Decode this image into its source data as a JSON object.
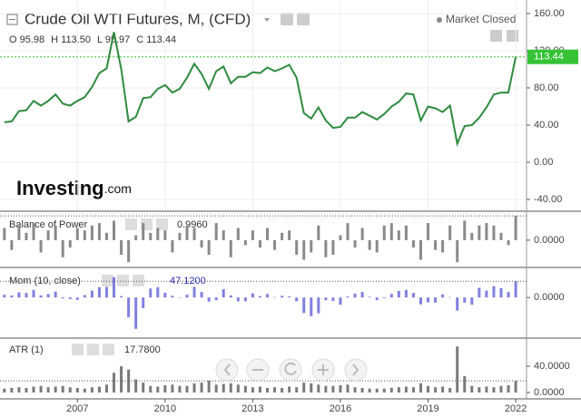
{
  "chart_data": [
    {
      "type": "line",
      "title": "Crude Oil WTI Futures, M, (CFD)",
      "status": "Market Closed",
      "ohlc": [
        "O 95.98",
        "H 113.50",
        "L 95.97",
        "C 113.44"
      ],
      "brand": "Investing",
      "brand_suffix": ".com",
      "color": "#2e8b3e",
      "last_color": "#35c335",
      "grid": true,
      "x": [
        2004.5,
        2004.75,
        2005,
        2005.25,
        2005.5,
        2005.75,
        2006,
        2006.25,
        2006.5,
        2006.75,
        2007,
        2007.25,
        2007.5,
        2007.75,
        2008,
        2008.25,
        2008.5,
        2008.75,
        2009,
        2009.25,
        2009.5,
        2009.75,
        2010,
        2010.25,
        2010.5,
        2010.75,
        2011,
        2011.25,
        2011.5,
        2011.75,
        2012,
        2012.25,
        2012.5,
        2012.75,
        2013,
        2013.25,
        2013.5,
        2013.75,
        2014,
        2014.25,
        2014.5,
        2014.75,
        2015,
        2015.25,
        2015.5,
        2015.75,
        2016,
        2016.25,
        2016.5,
        2016.75,
        2017,
        2017.25,
        2017.5,
        2017.75,
        2018,
        2018.25,
        2018.5,
        2018.75,
        2019,
        2019.25,
        2019.5,
        2019.75,
        2020,
        2020.25,
        2020.5,
        2020.75,
        2021,
        2021.25,
        2021.5,
        2021.75,
        2022
      ],
      "values": [
        43,
        44,
        55,
        56,
        66,
        61,
        66,
        73,
        63,
        61,
        66,
        70,
        81,
        96,
        101,
        140,
        100,
        44,
        49,
        69,
        70,
        79,
        83,
        75,
        79,
        91,
        106,
        95,
        79,
        98,
        103,
        85,
        92,
        92,
        97,
        96,
        102,
        98,
        101,
        105,
        91,
        53,
        47,
        59,
        45,
        37,
        38,
        48,
        48,
        54,
        50,
        46,
        52,
        60,
        65,
        74,
        73,
        45,
        60,
        58,
        54,
        61,
        20,
        39,
        40,
        48,
        59,
        73,
        75,
        75,
        113.44
      ],
      "xlim": [
        2004.35,
        2022.37
      ],
      "xticks": [
        2007,
        2010,
        2013,
        2016,
        2019,
        2022
      ],
      "ylim": [
        -51.7,
        174.6
      ],
      "yticks": [
        {
          "value": 160,
          "label": "160.00"
        },
        {
          "value": 120,
          "label": "120.00"
        },
        {
          "value": 80,
          "label": "80.00"
        },
        {
          "value": 40,
          "label": "40.00"
        },
        {
          "value": 0,
          "label": "0.00"
        },
        {
          "value": -40,
          "label": "-40.00"
        }
      ]
    },
    {
      "type": "bar",
      "title": "Balance of Power",
      "color": "#8a8a8a",
      "current": {
        "value": 0.996,
        "label": "0.9960"
      },
      "values": [
        0.5,
        -0.4,
        0.6,
        0.3,
        0.7,
        -0.5,
        0.4,
        0.6,
        -0.7,
        -0.3,
        0.5,
        0.4,
        0.6,
        0.7,
        0.3,
        0.8,
        -0.6,
        -0.9,
        0.2,
        0.7,
        0.3,
        0.5,
        0.4,
        -0.5,
        0.3,
        0.6,
        0.5,
        -0.3,
        -0.6,
        0.7,
        0.4,
        -0.7,
        0.5,
        -0.2,
        0.4,
        -0.3,
        0.5,
        -0.4,
        0.3,
        0.4,
        -0.6,
        -0.8,
        -0.5,
        0.6,
        -0.7,
        -0.6,
        0.2,
        0.7,
        -0.3,
        0.5,
        -0.4,
        -0.5,
        0.6,
        0.7,
        0.4,
        0.6,
        -0.3,
        -0.8,
        0.7,
        -0.4,
        -0.5,
        0.6,
        -0.9,
        0.8,
        0.3,
        0.6,
        0.7,
        0.6,
        0.3,
        -0.2,
        0.996
      ],
      "ylim": [
        -0.93,
        1.0
      ],
      "yticks": [
        {
          "value": 0,
          "label": "0.0000"
        }
      ]
    },
    {
      "type": "bar",
      "title": "Mom (10, close)",
      "color": "#8080e0",
      "current": {
        "value": 47.12,
        "label": "47.1200"
      },
      "values": [
        8,
        6,
        15,
        13,
        22,
        6,
        10,
        17,
        -3,
        -5,
        -7,
        7,
        20,
        30,
        31,
        59,
        4,
        -57,
        -91,
        -31,
        26,
        30,
        14,
        5,
        0,
        8,
        31,
        16,
        -12,
        -8,
        24,
        6,
        -11,
        -11,
        12,
        4,
        10,
        1,
        5,
        3,
        -11,
        -45,
        -54,
        -46,
        -8,
        -10,
        -21,
        3,
        11,
        16,
        2,
        -8,
        -2,
        10,
        19,
        22,
        13,
        -20,
        -14,
        -15,
        9,
        1,
        -38,
        -15,
        -21,
        28,
        20,
        33,
        27,
        16,
        47.12
      ],
      "ylim": [
        -110,
        74
      ],
      "yticks": [
        {
          "value": 0,
          "label": "0.0000"
        }
      ]
    },
    {
      "type": "bar",
      "title": "ATR (1)",
      "color": "#7a7a7a",
      "current": {
        "value": 17.78,
        "label": "17.7800"
      },
      "values": [
        6,
        7,
        8,
        7,
        9,
        10,
        8,
        9,
        10,
        8,
        7,
        6,
        8,
        9,
        12,
        30,
        40,
        35,
        20,
        15,
        10,
        9,
        11,
        12,
        10,
        10,
        14,
        15,
        18,
        12,
        13,
        14,
        12,
        10,
        8,
        9,
        7,
        8,
        7,
        9,
        8,
        15,
        14,
        12,
        10,
        10,
        11,
        12,
        8,
        7,
        6,
        6,
        6,
        7,
        8,
        9,
        8,
        14,
        10,
        8,
        9,
        7,
        70,
        25,
        10,
        8,
        9,
        8,
        10,
        11,
        17.78
      ],
      "ylim": [
        -9.7,
        75.9
      ],
      "yticks": [
        {
          "value": 40,
          "label": "40.0000"
        },
        {
          "value": 0,
          "label": "0.0000"
        }
      ]
    }
  ]
}
